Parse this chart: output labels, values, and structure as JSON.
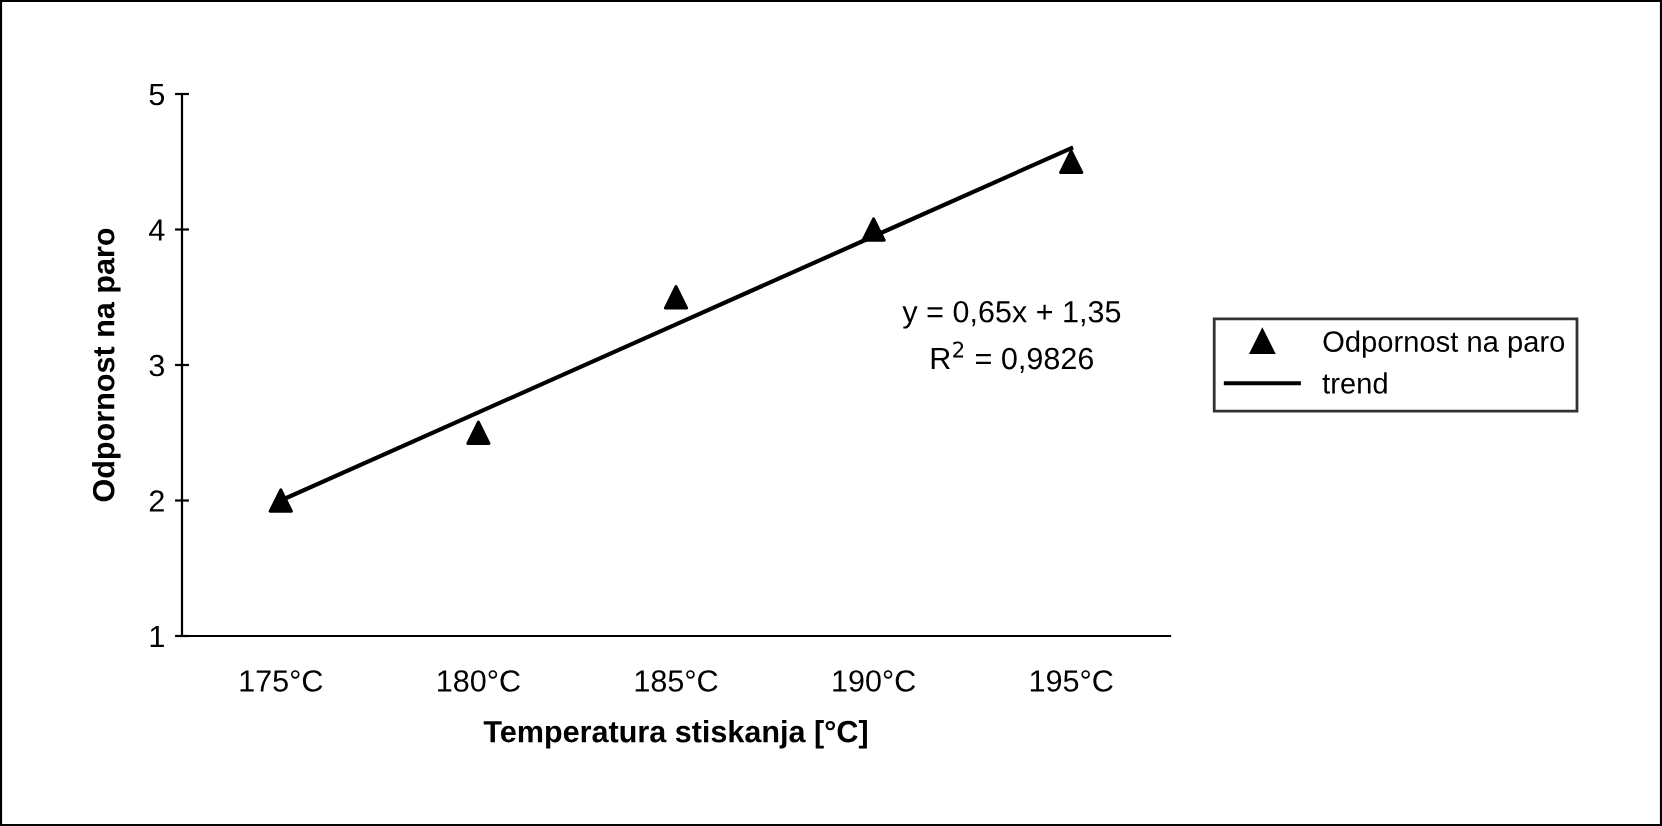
{
  "chart_data": {
    "type": "scatter",
    "xlabel": "Temperatura stiskanja [°C]",
    "ylabel": "Odpornost na paro",
    "categories": [
      "175°C",
      "180°C",
      "185°C",
      "190°C",
      "195°C"
    ],
    "series": [
      {
        "name": "Odpornost na paro",
        "color": "#000000",
        "marker": "triangle",
        "values": [
          2,
          2.5,
          3.5,
          4,
          4.5
        ]
      },
      {
        "name": "trend",
        "type": "line",
        "color": "#000000",
        "marker": "none",
        "line_style": "solid",
        "values": [
          2,
          2.65,
          3.3,
          3.95,
          4.6
        ]
      }
    ],
    "ylim": [
      1,
      5
    ],
    "yticks": [
      1,
      2,
      3,
      4,
      5
    ],
    "grid": false,
    "legend": "right",
    "annotations": [
      "y = 0,65x + 1,35\nR$^{2}$ = 0,9826"
    ]
  }
}
